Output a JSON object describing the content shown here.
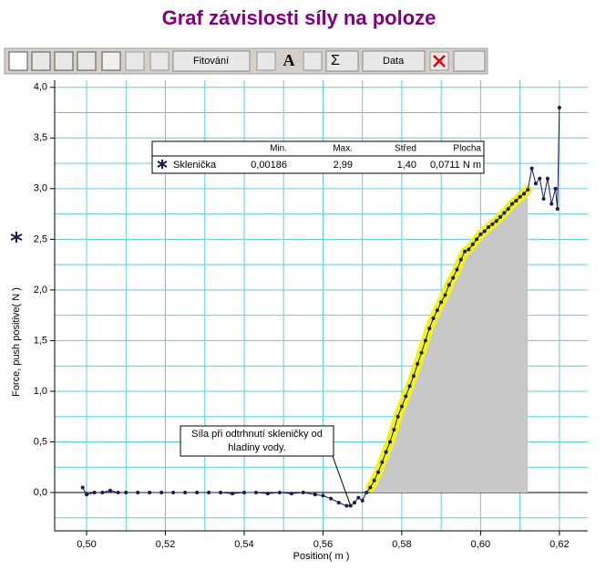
{
  "toolbar": {
    "fit": "Fitování",
    "text_tool": "A",
    "stats": "Σ",
    "data": "Data"
  },
  "chart_data": {
    "type": "scatter",
    "title": "Graf závislosti síly na poloze",
    "xlabel": "Position( m )",
    "ylabel": "Force, push positive( N )",
    "xlim": [
      0.4919,
      0.6272
    ],
    "ylim": [
      -0.378,
      4.07
    ],
    "xticks": [
      {
        "value": 0.5,
        "label": "0,50"
      },
      {
        "value": 0.52,
        "label": "0,52"
      },
      {
        "value": 0.54,
        "label": "0,54"
      },
      {
        "value": 0.56,
        "label": "0,56"
      },
      {
        "value": 0.58,
        "label": "0,58"
      },
      {
        "value": 0.6,
        "label": "0,60"
      },
      {
        "value": 0.62,
        "label": "0,62"
      }
    ],
    "yticks": [
      {
        "value": 0,
        "label": "0,0"
      },
      {
        "value": 0.5,
        "label": "0,5"
      },
      {
        "value": 1,
        "label": "1,0"
      },
      {
        "value": 1.5,
        "label": "1,5"
      },
      {
        "value": 2,
        "label": "2,0"
      },
      {
        "value": 2.5,
        "label": "2,5"
      },
      {
        "value": 3,
        "label": "3,0"
      },
      {
        "value": 3.5,
        "label": "3,5"
      },
      {
        "value": 4,
        "label": "4,0"
      }
    ],
    "xgrid": [
      0.5,
      0.51,
      0.52,
      0.53,
      0.54,
      0.55,
      0.56,
      0.57,
      0.58,
      0.59,
      0.6,
      0.61,
      0.62
    ],
    "ygrid": [
      -0.25,
      0,
      0.25,
      0.5,
      0.75,
      1,
      1.25,
      1.5,
      1.75,
      2,
      2.25,
      2.5,
      2.75,
      3,
      3.25,
      3.5,
      3.75,
      4
    ],
    "grid": true,
    "grid_color": "#55d0e0",
    "integral_range": [
      0.5715,
      0.6125
    ],
    "integral_color": "#c8c8c8",
    "highlight_color": "#f2f21a",
    "series": [
      {
        "name": "Sklenička",
        "color": "#1a1a5a",
        "x": [
          0.499,
          0.5,
          0.502,
          0.504,
          0.506,
          0.508,
          0.51,
          0.513,
          0.516,
          0.519,
          0.522,
          0.525,
          0.528,
          0.531,
          0.534,
          0.537,
          0.54,
          0.543,
          0.546,
          0.549,
          0.552,
          0.555,
          0.558,
          0.56,
          0.562,
          0.564,
          0.566,
          0.567,
          0.568,
          0.569,
          0.57,
          0.571,
          0.572,
          0.573,
          0.574,
          0.575,
          0.576,
          0.577,
          0.578,
          0.579,
          0.58,
          0.581,
          0.582,
          0.583,
          0.584,
          0.585,
          0.586,
          0.587,
          0.588,
          0.589,
          0.59,
          0.591,
          0.592,
          0.593,
          0.594,
          0.595,
          0.596,
          0.597,
          0.598,
          0.599,
          0.6,
          0.601,
          0.602,
          0.603,
          0.604,
          0.605,
          0.606,
          0.607,
          0.608,
          0.609,
          0.61,
          0.611,
          0.612,
          0.613,
          0.614,
          0.615,
          0.616,
          0.617,
          0.618,
          0.619,
          0.6195,
          0.62
        ],
        "values": [
          0.05,
          -0.02,
          0,
          0,
          0.02,
          0,
          0,
          0,
          0,
          0,
          0,
          0,
          0,
          0,
          0,
          -0.01,
          0,
          0,
          -0.01,
          0,
          -0.01,
          0,
          -0.02,
          -0.03,
          -0.06,
          -0.1,
          -0.13,
          -0.13,
          -0.1,
          -0.05,
          -0.08,
          0,
          0.05,
          0.12,
          0.2,
          0.3,
          0.4,
          0.5,
          0.62,
          0.75,
          0.85,
          0.95,
          1.05,
          1.15,
          1.27,
          1.38,
          1.5,
          1.62,
          1.72,
          1.8,
          1.88,
          1.95,
          2.05,
          2.12,
          2.2,
          2.3,
          2.38,
          2.4,
          2.45,
          2.5,
          2.55,
          2.58,
          2.62,
          2.65,
          2.68,
          2.72,
          2.76,
          2.8,
          2.85,
          2.88,
          2.92,
          2.95,
          2.99,
          3.2,
          3.05,
          3.1,
          2.9,
          3.1,
          2.85,
          3.0,
          2.8,
          3.8
        ]
      }
    ],
    "stats": {
      "headers": [
        "Min.",
        "Max.",
        "Střed",
        "Plocha"
      ],
      "row": [
        "Sklenička",
        "0,00186",
        "2,99",
        "1,40",
        "0,0711 N m"
      ]
    },
    "annotation": {
      "lines": [
        "Síla při odtrhnutí skleničky od",
        "hladiny vody."
      ],
      "x": 0.567,
      "y": -0.13
    }
  }
}
